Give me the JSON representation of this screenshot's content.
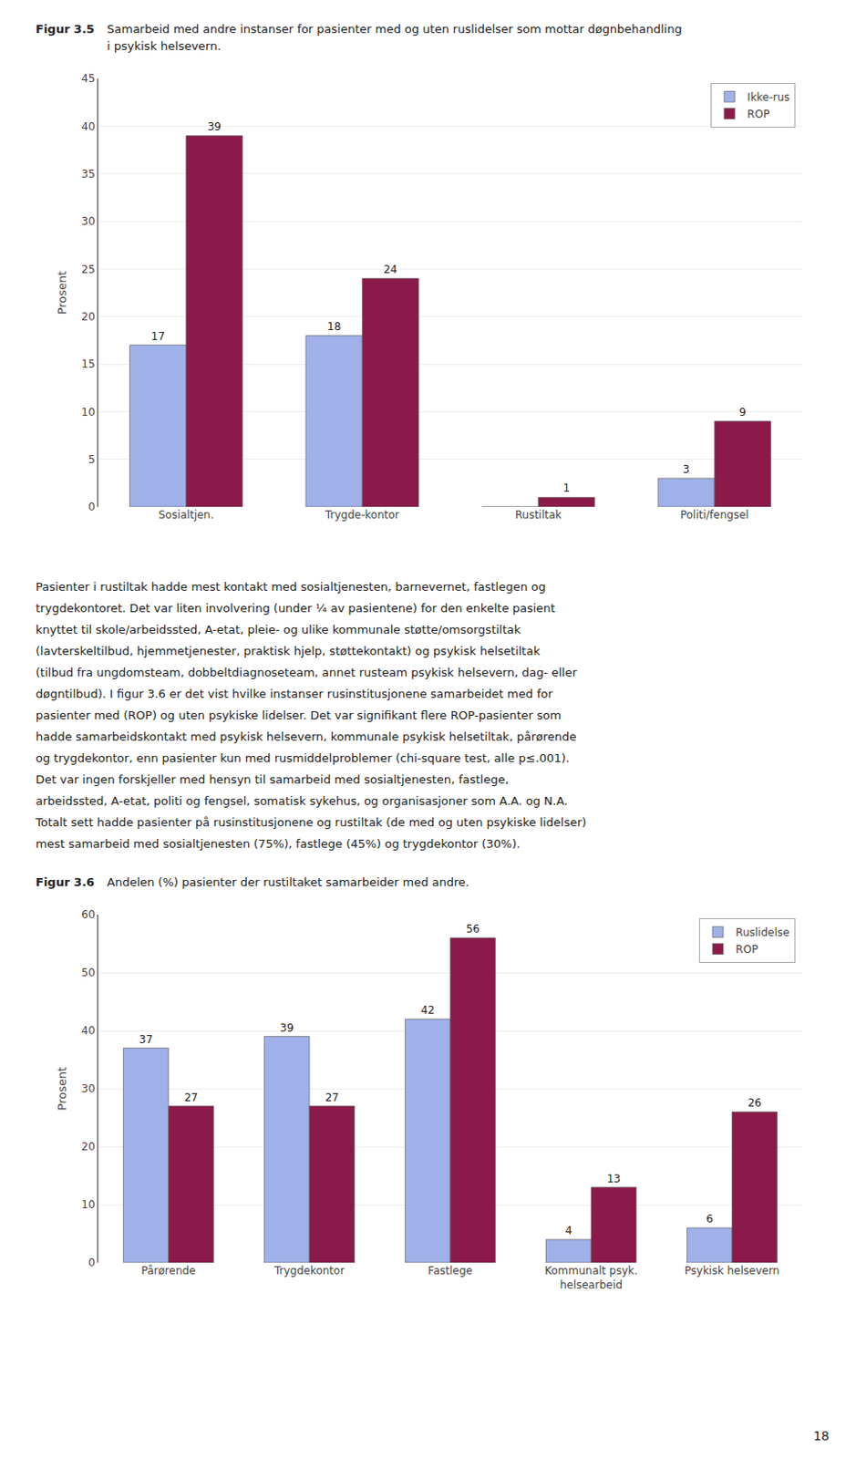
{
  "chart_data": [
    {
      "type": "bar",
      "title": "Figur 3.5",
      "subtitle": "Samarbeid med andre instanser for pasienter med og uten ruslidelser som mottar døgnbehandling\ni psykisk helsevern.",
      "categories": [
        "Sosialtjen.",
        "Trygde-kontor",
        "Rustiltak",
        "Politi/fengsel"
      ],
      "series": [
        {
          "name": "Ikke-rus",
          "color": "#a0b0e8",
          "values": [
            17,
            18,
            0,
            3
          ],
          "value_labels": [
            "17",
            "18",
            null,
            "3"
          ]
        },
        {
          "name": "ROP",
          "color": "#8b1a4a",
          "values": [
            39,
            24,
            1,
            9
          ]
        }
      ],
      "ylabel": "Prosent",
      "ylim": [
        0,
        45
      ],
      "yticks": [
        0,
        5,
        10,
        15,
        20,
        25,
        30,
        35,
        40,
        45
      ],
      "grid": true,
      "legend": "upper right",
      "data_labels": true
    },
    {
      "type": "bar",
      "title": "Figur 3.6",
      "subtitle": "Andelen (%) pasienter der rustiltaket samarbeider med andre.",
      "categories": [
        "Pårørende",
        "Trygdekontor",
        "Fastlege",
        "Kommunalt psyk.\nhelsearbeid",
        "Psykisk helsevern"
      ],
      "series": [
        {
          "name": "Ruslidelse",
          "color": "#a0b0e8",
          "values": [
            37,
            39,
            42,
            4,
            6
          ]
        },
        {
          "name": "ROP",
          "color": "#8b1a4a",
          "values": [
            27,
            27,
            56,
            13,
            26
          ]
        }
      ],
      "ylabel": "Prosent",
      "ylim": [
        0,
        60
      ],
      "yticks": [
        0,
        10,
        20,
        30,
        40,
        50,
        60
      ],
      "grid": true,
      "legend": "upper right",
      "data_labels": true
    }
  ],
  "body_text": [
    "Pasienter i rustiltak hadde mest kontakt med sosialtjenesten, barnevernet, fastlegen og",
    "trygdekontoret. Det var liten involvering (under ¼ av pasientene) for den enkelte pasient",
    "knyttet til skole/arbeidssted, A-etat, pleie- og ulike kommunale støtte/omsorgstiltak",
    "(lavterskeltilbud, hjemmetjenester, praktisk hjelp, støttekontakt) og psykisk helsetiltak",
    "(tilbud fra ungdomsteam, dobbeltdiagnoseteam, annet rusteam psykisk helsevern, dag- eller",
    "døgntilbud). I figur 3.6 er det vist hvilke instanser rusinstitusjonene samarbeidet med for",
    "pasienter med (ROP) og uten psykiske lidelser. Det var signifikant flere ROP-pasienter som",
    "hadde samarbeidskontakt med psykisk helsevern, kommunale psykisk helsetiltak, pårørende",
    "og trygdekontor, enn pasienter kun med rusmiddelproblemer (chi-square test, alle p≤.001).",
    "Det var ingen forskjeller med hensyn til samarbeid med sosialtjenesten, fastlege,",
    "arbeidssted, A-etat, politi og fengsel, somatisk sykehus, og organisasjoner som A.A. og N.A.",
    "Totalt sett hadde pasienter på rusinstitusjonene og rustiltak (de med og uten psykiske lidelser)",
    "mest samarbeid med sosialtjenesten (75%), fastlege (45%) og trygdekontor (30%)."
  ],
  "page_number": "18"
}
